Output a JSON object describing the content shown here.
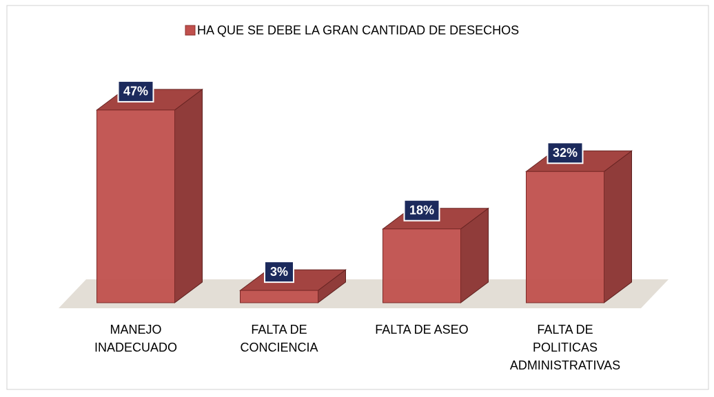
{
  "chart_data": {
    "type": "bar3d",
    "categories": [
      "MANEJO\nINADECUADO",
      "FALTA DE\nCONCIENCIA",
      "FALTA DE ASEO",
      "FALTA DE\nPOLITICAS\nADMINISTRATIVAS"
    ],
    "series": [
      {
        "name": "HA QUE SE DEBE LA GRAN CANTIDAD DE DESECHOS",
        "color": "#c0504d",
        "values": [
          47,
          3,
          18,
          32
        ],
        "value_labels": [
          "47%",
          "3%",
          "18%",
          "32%"
        ]
      }
    ],
    "legend": "top"
  }
}
